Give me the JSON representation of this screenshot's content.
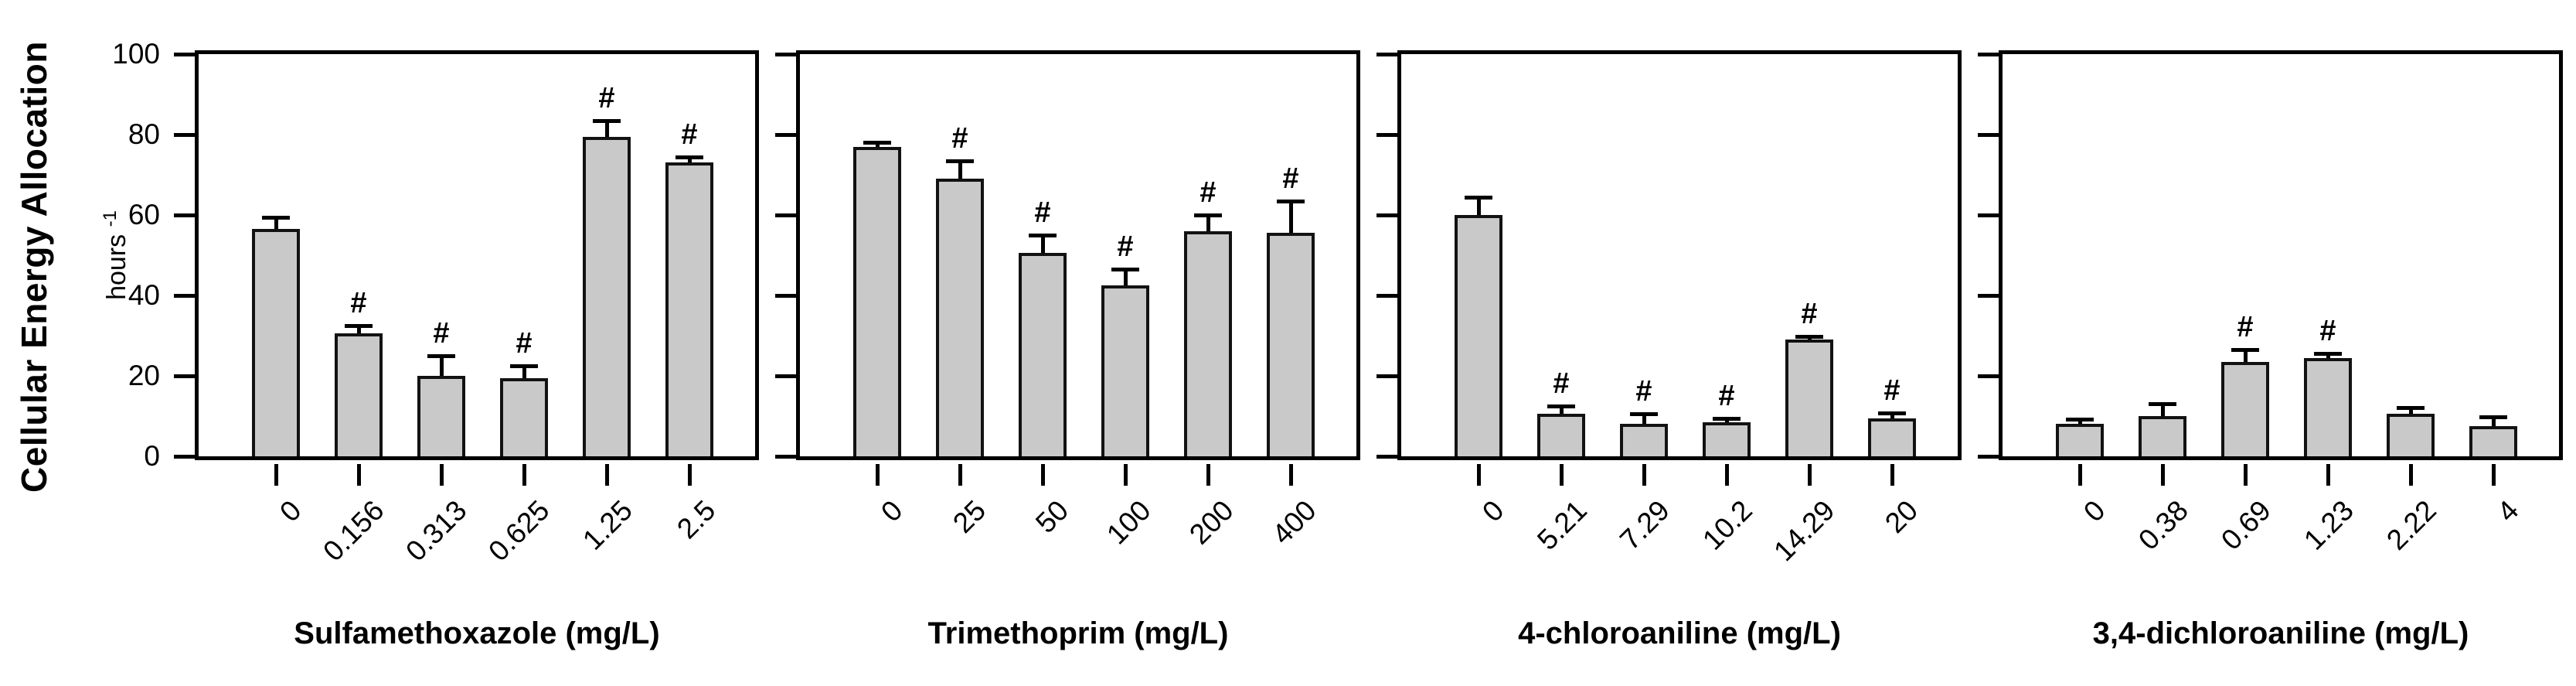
{
  "figure": {
    "y_axis": {
      "label": "Cellular Energy Allocation",
      "unit_text": "hours",
      "unit_exponent": "-1",
      "ticks": [
        0,
        20,
        40,
        60,
        80,
        100
      ],
      "range": [
        0,
        100
      ]
    },
    "significance_marker": "#",
    "bar_fill_color": "#c9c9c9",
    "line_color": "#000000"
  },
  "chart_data": [
    {
      "type": "bar",
      "title": "",
      "xlabel": "Sulfamethoxazole (mg/L)",
      "ylabel": "Cellular Energy Allocation (hours -1)",
      "categories": [
        "0",
        "0.156",
        "0.313",
        "0.625",
        "1.25",
        "2.5"
      ],
      "values": [
        56.5,
        30.5,
        20,
        19.5,
        79.5,
        73
      ],
      "errors": [
        3,
        2,
        5,
        3,
        4,
        1.5
      ],
      "significant": [
        false,
        true,
        true,
        true,
        true,
        true
      ],
      "ylim": [
        0,
        100
      ],
      "grid": false
    },
    {
      "type": "bar",
      "title": "",
      "xlabel": "Trimethoprim (mg/L)",
      "ylabel": "",
      "categories": [
        "0",
        "25",
        "50",
        "100",
        "200",
        "400"
      ],
      "values": [
        77,
        69,
        50.5,
        42.5,
        56,
        55.5
      ],
      "errors": [
        1,
        4.5,
        4.5,
        4,
        4,
        8
      ],
      "significant": [
        false,
        true,
        true,
        true,
        true,
        true
      ],
      "ylim": [
        0,
        100
      ],
      "grid": false
    },
    {
      "type": "bar",
      "title": "",
      "xlabel": "4-chloroaniline (mg/L)",
      "ylabel": "",
      "categories": [
        "0",
        "5.21",
        "7.29",
        "10.2",
        "14.29",
        "20"
      ],
      "values": [
        60,
        10.5,
        8,
        8.5,
        29,
        9.5
      ],
      "errors": [
        4.5,
        2,
        2.5,
        1,
        0.8,
        1.3
      ],
      "significant": [
        false,
        true,
        true,
        true,
        true,
        true
      ],
      "ylim": [
        0,
        100
      ],
      "grid": false
    },
    {
      "type": "bar",
      "title": "",
      "xlabel": "3,4-dichloroaniline (mg/L)",
      "ylabel": "",
      "categories": [
        "0",
        "0.38",
        "0.69",
        "1.23",
        "2.22",
        "4"
      ],
      "values": [
        8,
        10,
        23.5,
        24.5,
        10.5,
        7.5
      ],
      "errors": [
        1.3,
        3,
        3,
        1,
        1.6,
        2.3
      ],
      "significant": [
        false,
        false,
        true,
        true,
        false,
        false
      ],
      "ylim": [
        0,
        100
      ],
      "grid": false
    }
  ]
}
